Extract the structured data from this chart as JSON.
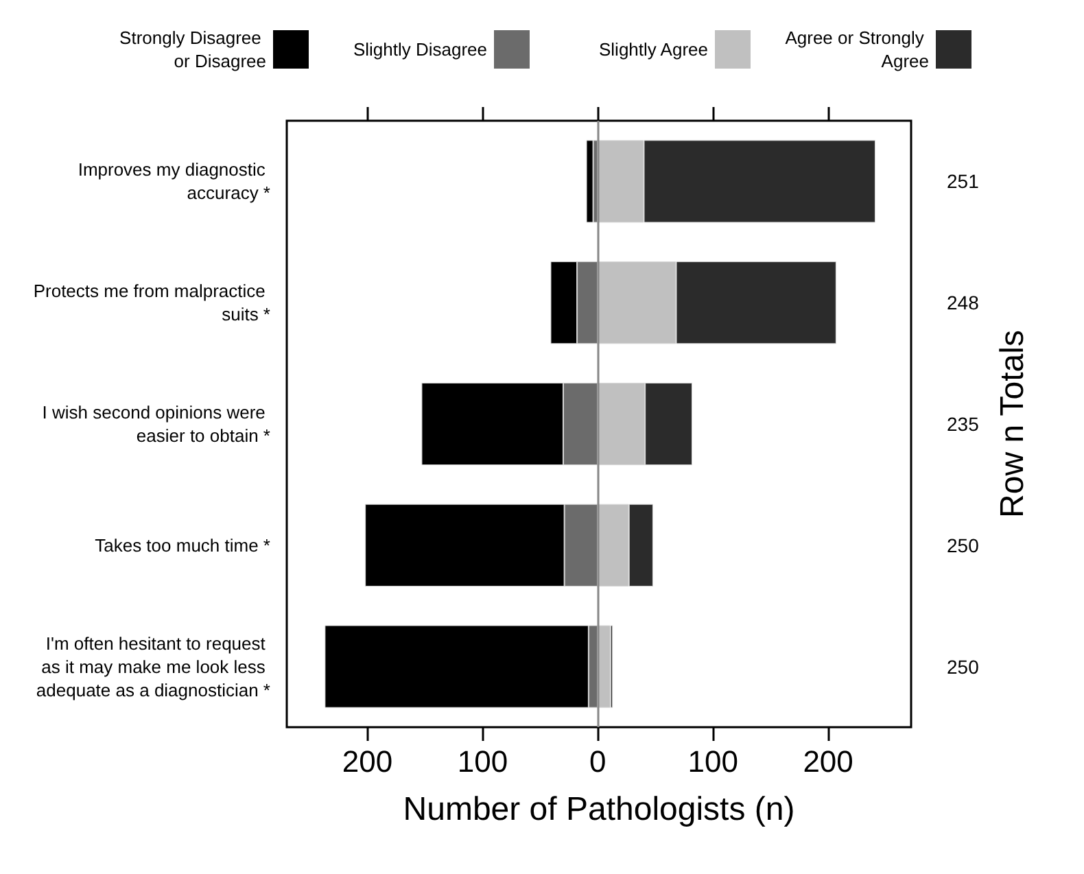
{
  "chart_data": {
    "type": "bar",
    "orientation": "horizontal",
    "stacked": true,
    "categories": [
      "Improves my diagnostic accuracy *",
      "Protects me from malpractice suits *",
      "I wish second opinions were easier to obtain *",
      "Takes too much time *",
      "I'm often hesitant to request as it may make me look less adequate as a diagnostician *"
    ],
    "series": [
      {
        "name": "Strongly Disagree or Disagree",
        "color": "#000000",
        "values": [
          -6,
          -23,
          -123,
          -173,
          -229
        ]
      },
      {
        "name": "Slightly Disagree",
        "color": "#6b6b6b",
        "values": [
          -4,
          -18,
          -30,
          -29,
          -8
        ]
      },
      {
        "name": "Slightly Agree",
        "color": "#c0c0c0",
        "values": [
          40,
          68,
          41,
          27,
          11
        ]
      },
      {
        "name": "Agree or Strongly Agree",
        "color": "#2b2b2b",
        "values": [
          201,
          139,
          41,
          21,
          2
        ]
      }
    ],
    "annotations": [
      "251",
      "248",
      "235",
      "250",
      "250"
    ],
    "xlabel": "Number of Pathologists (n)",
    "y2label": "Row n Totals",
    "xlim": [
      -270,
      272
    ],
    "xticks": [
      {
        "value": -200,
        "label": "200"
      },
      {
        "value": -100,
        "label": "100"
      },
      0,
      100,
      200
    ],
    "ref_lines": [
      {
        "axis": "x",
        "value": 0,
        "label": null,
        "color": "#888888"
      }
    ],
    "legend": "top",
    "grid": false
  }
}
